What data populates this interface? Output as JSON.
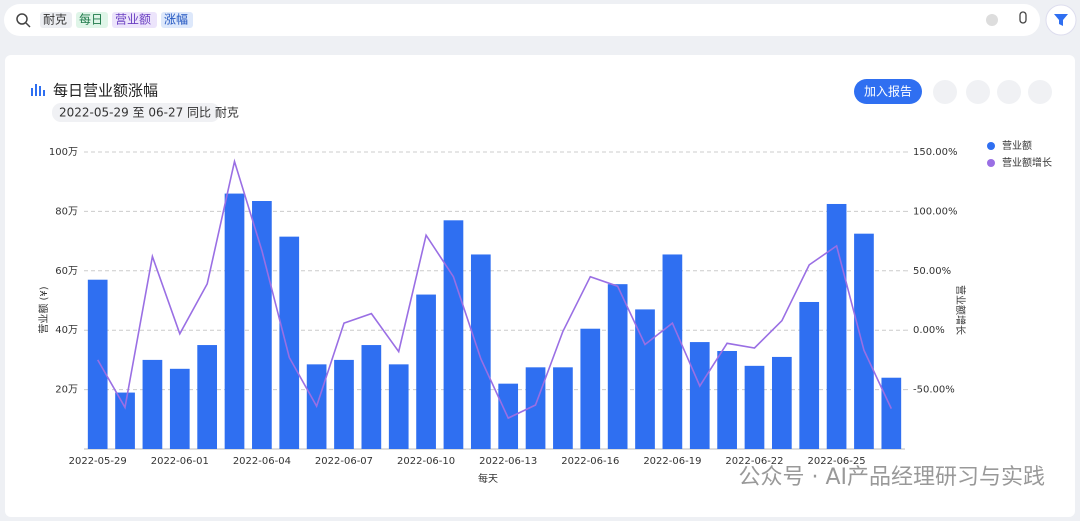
{
  "search": {
    "chips": [
      "耐克",
      "每日",
      "营业额",
      "涨幅"
    ]
  },
  "card": {
    "title": "每日营业额涨幅",
    "subtitle": "2022-05-29 至 06-27 同比 耐克",
    "button": "加入报告"
  },
  "watermark": "公众号 · AI产品经理研习与实践",
  "chart_data": {
    "type": "bar_line",
    "x_label": "每天",
    "y_label": "营业额 (¥)",
    "y2_label": "营业额增长",
    "categories": [
      "2022-05-29",
      null,
      null,
      "2022-06-01",
      null,
      null,
      "2022-06-04",
      null,
      null,
      "2022-06-07",
      null,
      null,
      "2022-06-10",
      null,
      null,
      "2022-06-13",
      null,
      null,
      "2022-06-16",
      null,
      null,
      "2022-06-19",
      null,
      null,
      "2022-06-22",
      null,
      null,
      "2022-06-25",
      null,
      null
    ],
    "series": [
      {
        "name": "营业额",
        "color": "#2f6ff1",
        "type": "bar",
        "values": [
          57,
          19,
          30,
          27,
          35,
          86,
          83.5,
          71.5,
          28.5,
          30,
          35,
          28.5,
          52,
          77,
          65.5,
          22,
          27.5,
          27.5,
          40.5,
          55.5,
          47,
          65.5,
          36,
          33,
          28,
          31,
          49.5,
          82.5,
          72.5,
          24
        ]
      },
      {
        "name": "营业额增长",
        "color": "#9a6fe4",
        "type": "line",
        "axis": "y2",
        "values": [
          -25,
          -65,
          62,
          -3,
          39,
          142,
          67,
          -23,
          -64,
          6,
          14,
          -18,
          80,
          45,
          -24,
          -74,
          -63,
          -1,
          45,
          37,
          -12,
          6,
          -47,
          -11,
          -15,
          8,
          55,
          71,
          -17,
          -66
        ]
      }
    ],
    "ylim": [
      0,
      100
    ],
    "yticks": [
      {
        "value": 20,
        "label": "20万"
      },
      {
        "value": 40,
        "label": "40万"
      },
      {
        "value": 60,
        "label": "60万"
      },
      {
        "value": 80,
        "label": "80万"
      },
      {
        "value": 100,
        "label": "100万"
      }
    ],
    "y2lim": [
      -100,
      150
    ],
    "y2ticks": [
      {
        "value": -50,
        "label": "-50.00%"
      },
      {
        "value": 0,
        "label": "0.00%"
      },
      {
        "value": 50,
        "label": "50.00%"
      },
      {
        "value": 100,
        "label": "100.00%"
      },
      {
        "value": 150,
        "label": "150.00%"
      }
    ],
    "grid": true,
    "legend": "top-right"
  }
}
